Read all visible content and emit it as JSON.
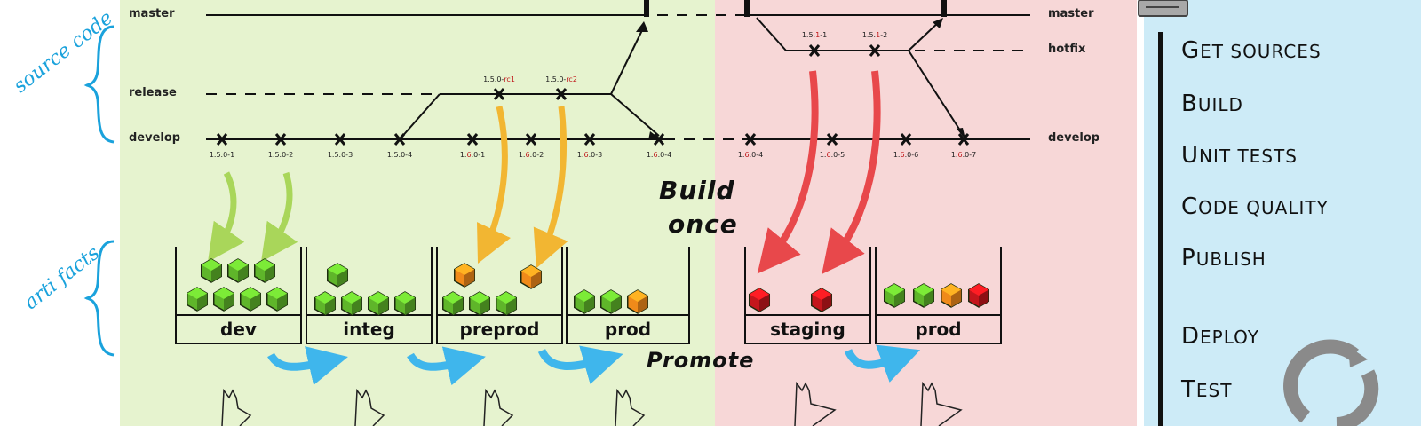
{
  "labels": {
    "source_code": "source code",
    "artifacts": "arti facts",
    "build_once_1": "Build",
    "build_once_2": "once",
    "promote": "Promote"
  },
  "branches": {
    "master_left": "master",
    "release": "release",
    "develop_left": "develop",
    "master_right": "master",
    "hotfix": "hotfix",
    "develop_right": "develop"
  },
  "versions": {
    "d1": {
      "pre": "1.5.0-1",
      "hl": "",
      "post": ""
    },
    "d2": {
      "pre": "1.5.0-2",
      "hl": "",
      "post": ""
    },
    "d3": {
      "pre": "1.5.0-3",
      "hl": "",
      "post": ""
    },
    "d4": {
      "pre": "1.5.0-4",
      "hl": "",
      "post": ""
    },
    "d5": {
      "pre": "1.",
      "hl": "6",
      "post": ".0-1"
    },
    "d6": {
      "pre": "1.",
      "hl": "6",
      "post": ".0-2"
    },
    "d7": {
      "pre": "1.",
      "hl": "6",
      "post": ".0-3"
    },
    "d8": {
      "pre": "1.",
      "hl": "6",
      "post": ".0-4"
    },
    "d9": {
      "pre": "1.",
      "hl": "6",
      "post": ".0-4"
    },
    "d10": {
      "pre": "1.",
      "hl": "6",
      "post": ".0-5"
    },
    "d11": {
      "pre": "1.",
      "hl": "6",
      "post": ".0-6"
    },
    "d12": {
      "pre": "1.",
      "hl": "6",
      "post": ".0-7"
    },
    "r1": {
      "pre": "1.5.0-",
      "hl": "rc1",
      "post": ""
    },
    "r2": {
      "pre": "1.5.0-",
      "hl": "rc2",
      "post": ""
    },
    "h1": {
      "pre": "1.5.",
      "hl": "1",
      "post": "-1"
    },
    "h2": {
      "pre": "1.5.",
      "hl": "1",
      "post": "-2"
    }
  },
  "bins": {
    "dev": "dev",
    "integ": "integ",
    "preprod": "preprod",
    "prod_left": "prod",
    "staging": "staging",
    "prod_right": "prod"
  },
  "steps": {
    "get_sources": {
      "cap": "G",
      "rest": "et sources"
    },
    "build": {
      "cap": "B",
      "rest": "uild"
    },
    "unit_tests": {
      "cap": "U",
      "rest": "nit tests"
    },
    "code_quality": {
      "cap": "C",
      "rest": "ode quality"
    },
    "publish": {
      "cap": "P",
      "rest": "ublish"
    },
    "deploy": {
      "cap": "D",
      "rest": "eploy"
    },
    "test": {
      "cap": "T",
      "rest": "est"
    }
  },
  "colors": {
    "green_zone": "#e6f3cf",
    "red_zone": "#f7d7d7",
    "panel": "#cdebf7",
    "cube_green": "#5fb52a",
    "cube_orange": "#f08a1a",
    "cube_red": "#c4161c",
    "arrow_green": "#a9d65a",
    "arrow_orange": "#f2b632",
    "arrow_red": "#e8484b",
    "arrow_blue": "#3fb6ec",
    "label_blue": "#1aa2dc",
    "highlight_red": "#c0171a"
  }
}
